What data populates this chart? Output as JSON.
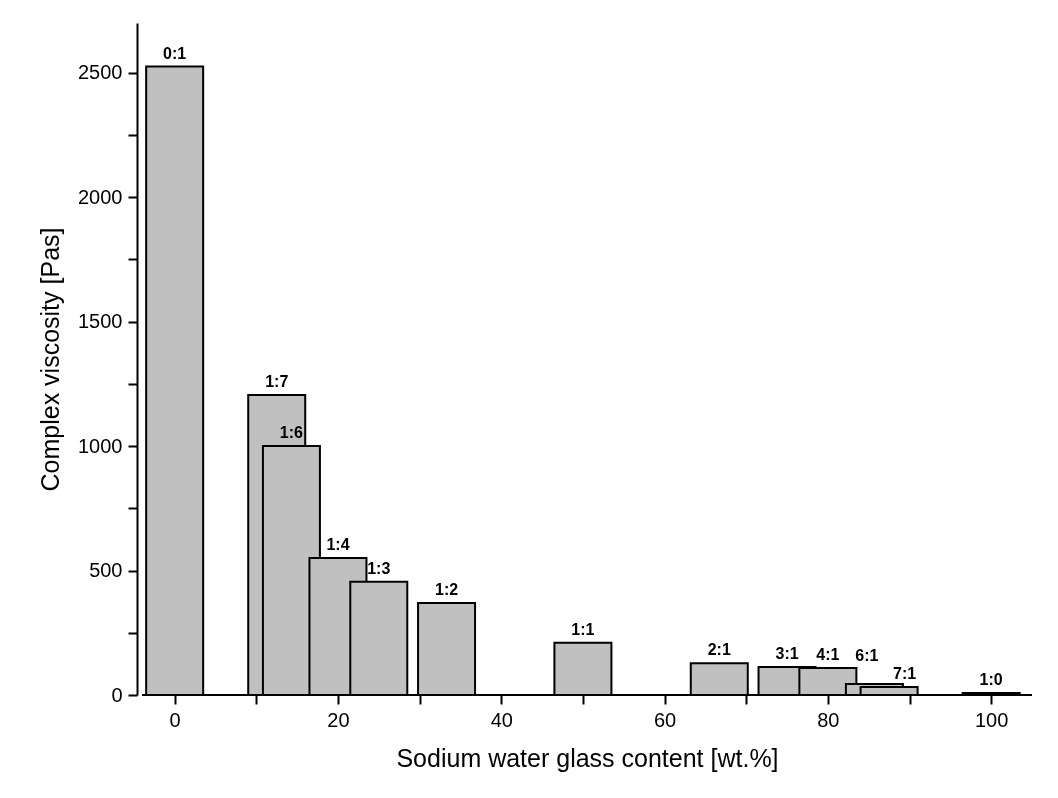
{
  "chart_data": {
    "type": "bar",
    "xlabel": "Sodium water glass content [wt.%]",
    "ylabel": "Complex viscosity [Pas]",
    "x": [
      0,
      12.5,
      14.3,
      20,
      25,
      33.3,
      50,
      66.7,
      75,
      80,
      85.7,
      87.5,
      100
    ],
    "values": [
      2525,
      1205,
      1000,
      550,
      455,
      370,
      210,
      128,
      112,
      108,
      44,
      32,
      8
    ],
    "value_labels": [
      "0:1",
      "1:7",
      "1:6",
      "1:4",
      "1:3",
      "1:2",
      "1:1",
      "2:1",
      "3:1",
      "4:1",
      "6:1",
      "7:1",
      "1:0"
    ],
    "color": "#c0c0c0",
    "xlim": [
      -4,
      105
    ],
    "xticks": [
      0,
      {
        "value": 10,
        "label": null
      },
      20,
      {
        "value": 30,
        "label": null
      },
      40,
      {
        "value": 50,
        "label": null
      },
      60,
      {
        "value": 70,
        "label": null
      },
      80,
      {
        "value": 90,
        "label": null
      },
      100
    ],
    "ylim": [
      0,
      2700
    ],
    "yticks": [
      0,
      {
        "value": 250,
        "label": null
      },
      500,
      {
        "value": 750,
        "label": null
      },
      1000,
      {
        "value": 1250,
        "label": null
      },
      1500,
      {
        "value": 1750,
        "label": null
      },
      2000,
      {
        "value": 2250,
        "label": null
      },
      2500
    ],
    "grid": false
  }
}
